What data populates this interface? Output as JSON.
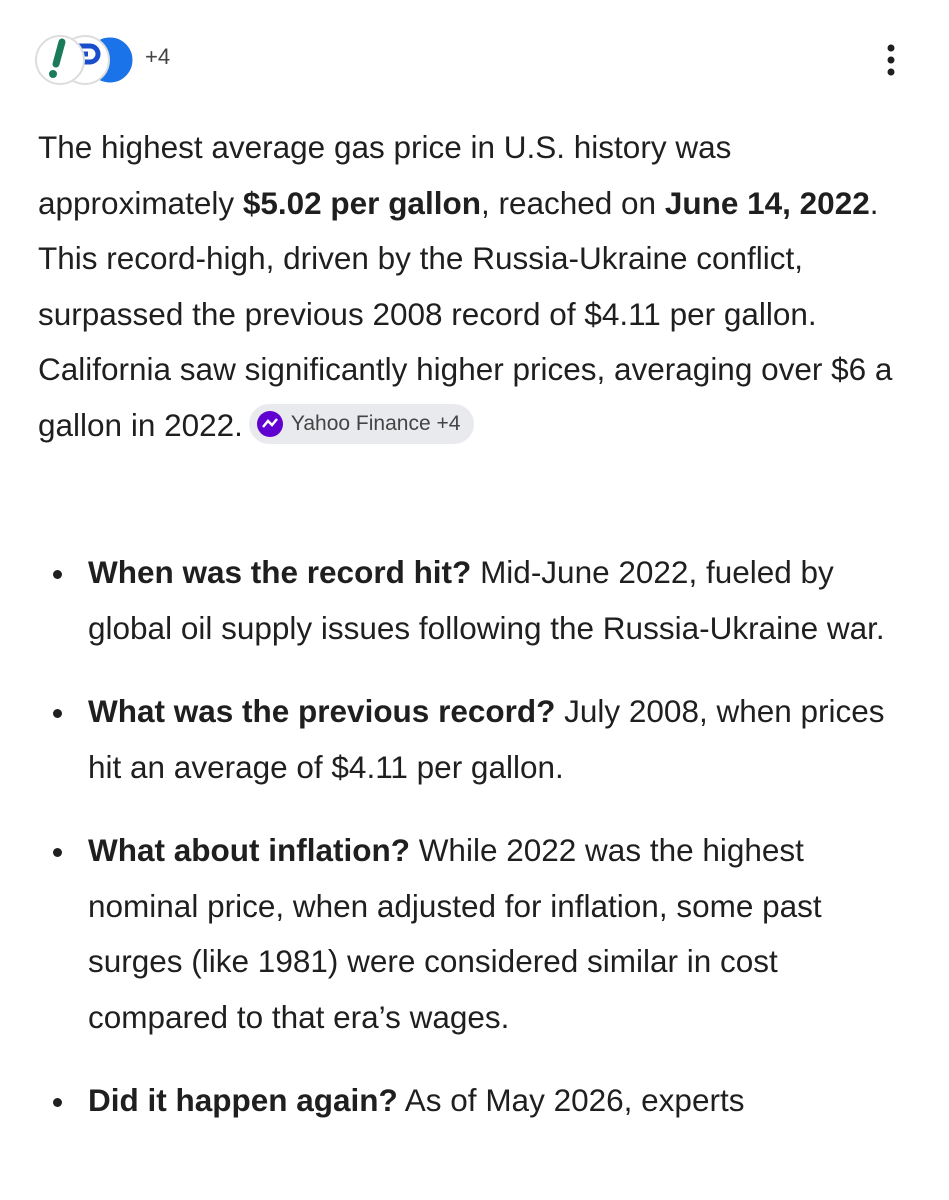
{
  "header": {
    "sources_count": "+4"
  },
  "answer": {
    "runs": [
      {
        "text": "The highest average gas price in U.S. history was approximately ",
        "bold": false
      },
      {
        "text": "$5.02 per gallon",
        "bold": true
      },
      {
        "text": ", reached on ",
        "bold": false
      },
      {
        "text": "June 14, 2022",
        "bold": true
      },
      {
        "text": ". This record-high, driven by the Russia-Ukraine conflict, surpassed the previous 2008 record of $4.11 per gallon. California saw significantly higher prices, averaging over $6 a gallon in 2022.",
        "bold": false
      }
    ],
    "citation": "Yahoo Finance +4"
  },
  "bullets": [
    {
      "question": "When was the record hit?",
      "answer": "Mid-June 2022, fueled by global oil supply issues following the Russia-Ukraine war."
    },
    {
      "question": "What was the previous record?",
      "answer": "July 2008, when prices hit an average of $4.11 per gallon."
    },
    {
      "question": "What about inflation?",
      "answer": "While 2022 was the highest nominal price, when adjusted for inflation, some past surges (like 1981) were considered similar in cost compared to that era’s wages."
    },
    {
      "question": "Did it happen again?",
      "answer": "As of May 2026, experts"
    }
  ]
}
